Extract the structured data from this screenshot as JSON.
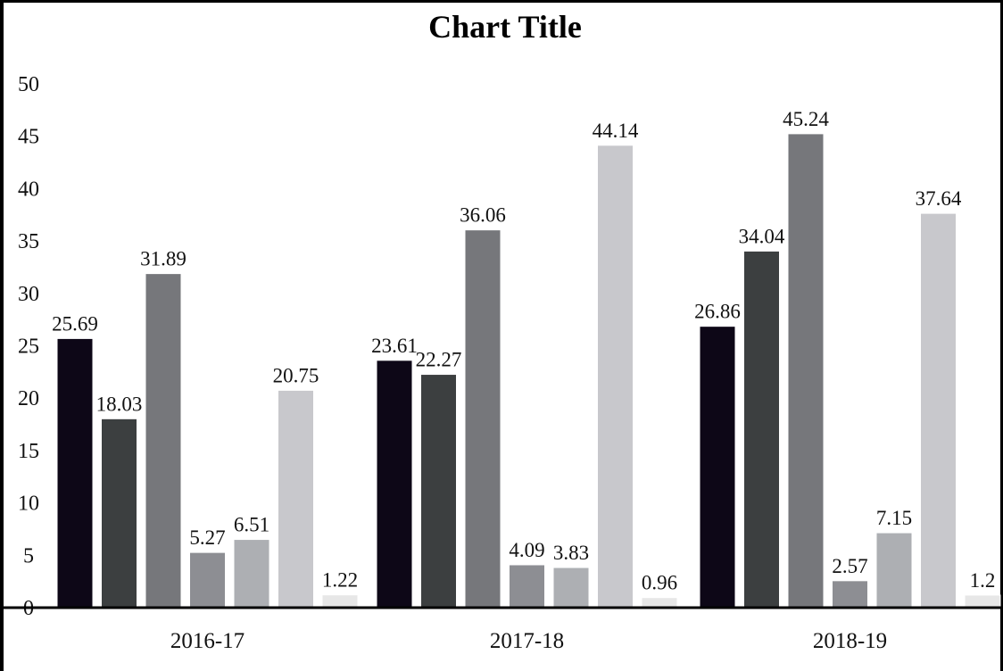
{
  "chart_data": {
    "type": "bar",
    "title": "Chart Title",
    "categories": [
      "2016-17",
      "2017-18",
      "2018-19"
    ],
    "ylim": [
      0,
      50
    ],
    "yticks": [
      0,
      5,
      10,
      15,
      20,
      25,
      30,
      35,
      40,
      45,
      50
    ],
    "grid": false,
    "legend": "none",
    "series": [
      {
        "values": [
          25.69,
          23.61,
          26.86
        ],
        "labels": [
          "25.69",
          "23.61",
          "26.86"
        ],
        "color": "#0d0717"
      },
      {
        "values": [
          18.03,
          22.27,
          34.04
        ],
        "labels": [
          "18.03",
          "22.27",
          "34.04"
        ],
        "color": "#3c3f40"
      },
      {
        "values": [
          31.89,
          36.06,
          45.24
        ],
        "labels": [
          "31.89",
          "36.06",
          "45.24"
        ],
        "color": "#76777b"
      },
      {
        "values": [
          5.27,
          4.09,
          2.57
        ],
        "labels": [
          "5.27",
          "4.09",
          "2.57"
        ],
        "color": "#8d8e93"
      },
      {
        "values": [
          6.51,
          3.83,
          7.15
        ],
        "labels": [
          "6.51",
          "3.83",
          "7.15"
        ],
        "color": "#adafb3"
      },
      {
        "values": [
          20.75,
          44.14,
          37.64
        ],
        "labels": [
          "20.75",
          "44.14",
          "37.64"
        ],
        "color": "#c8c8cc"
      },
      {
        "values": [
          1.22,
          0.96,
          1.2
        ],
        "labels": [
          "1.22",
          "0.96",
          "1.2"
        ],
        "color": "#e7e7e7"
      }
    ]
  }
}
